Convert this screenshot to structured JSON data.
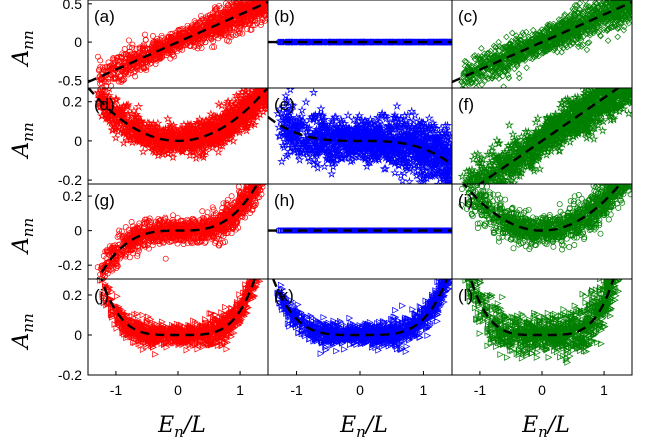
{
  "chart_data": [
    {
      "panel": "(a)",
      "type": "scatter",
      "row": 0,
      "col": 0,
      "color": "#ff0000",
      "marker": "circle",
      "ylim": [
        -0.6,
        0.55
      ],
      "xlim": [
        -1.45,
        1.45
      ],
      "yticks": [
        -0.5,
        0,
        0.5
      ],
      "ytick_labels": [
        "-0.5",
        "0",
        "0.5"
      ],
      "trend": "linear",
      "slope": 0.36,
      "spread": 0.1,
      "n": 1400
    },
    {
      "panel": "(b)",
      "type": "scatter",
      "row": 0,
      "col": 1,
      "color": "#0000ff",
      "marker": "diamond",
      "ylim": [
        -0.6,
        0.55
      ],
      "xlim": [
        -1.45,
        1.45
      ],
      "yticks": [],
      "ytick_labels": [],
      "trend": "flat",
      "spread": 0.0,
      "n": 900
    },
    {
      "panel": "(c)",
      "type": "scatter",
      "row": 0,
      "col": 2,
      "color": "#007f00",
      "marker": "diamond",
      "ylim": [
        -0.6,
        0.55
      ],
      "xlim": [
        -1.45,
        1.45
      ],
      "yticks": [],
      "ytick_labels": [],
      "trend": "linear",
      "slope": 0.36,
      "spread": 0.12,
      "n": 1400
    },
    {
      "panel": "(d)",
      "type": "scatter",
      "row": 1,
      "col": 0,
      "color": "#ff0000",
      "marker": "star",
      "ylim": [
        -0.22,
        0.27
      ],
      "xlim": [
        -1.45,
        1.45
      ],
      "yticks": [
        -0.2,
        0,
        0.2
      ],
      "ytick_labels": [
        "-0.2",
        "0",
        "0.2"
      ],
      "trend": "quadratic",
      "curv": 0.13,
      "spread": 0.045,
      "n": 1400
    },
    {
      "panel": "(e)",
      "type": "scatter",
      "row": 1,
      "col": 1,
      "color": "#0000ff",
      "marker": "star",
      "ylim": [
        -0.22,
        0.27
      ],
      "xlim": [
        -1.45,
        1.45
      ],
      "yticks": [],
      "ytick_labels": [],
      "trend": "cubic",
      "cub": -0.04,
      "spread": 0.07,
      "n": 1400
    },
    {
      "panel": "(f)",
      "type": "scatter",
      "row": 1,
      "col": 2,
      "color": "#007f00",
      "marker": "star",
      "ylim": [
        -0.22,
        0.27
      ],
      "xlim": [
        -1.45,
        1.45
      ],
      "yticks": [],
      "ytick_labels": [],
      "trend": "linear",
      "slope": 0.22,
      "spread": 0.06,
      "n": 1400
    },
    {
      "panel": "(g)",
      "type": "scatter",
      "row": 2,
      "col": 0,
      "color": "#ff0000",
      "marker": "circle",
      "ylim": [
        -0.28,
        0.27
      ],
      "xlim": [
        -1.45,
        1.45
      ],
      "yticks": [
        -0.2,
        0,
        0.2
      ],
      "ytick_labels": [
        "-0.2",
        "0",
        "0.2"
      ],
      "trend": "cubic",
      "cub": 0.13,
      "spread": 0.045,
      "n": 1400
    },
    {
      "panel": "(h)",
      "type": "scatter",
      "row": 2,
      "col": 1,
      "color": "#0000ff",
      "marker": "circle",
      "ylim": [
        -0.28,
        0.27
      ],
      "xlim": [
        -1.45,
        1.45
      ],
      "yticks": [],
      "ytick_labels": [],
      "trend": "flat",
      "spread": 0.0,
      "n": 900
    },
    {
      "panel": "(i)",
      "type": "scatter",
      "row": 2,
      "col": 2,
      "color": "#007f00",
      "marker": "circle",
      "ylim": [
        -0.28,
        0.27
      ],
      "xlim": [
        -1.45,
        1.45
      ],
      "yticks": [],
      "ytick_labels": [],
      "trend": "quadratic",
      "curv": 0.17,
      "spread": 0.055,
      "n": 1400
    },
    {
      "panel": "(j)",
      "type": "scatter",
      "row": 3,
      "col": 0,
      "color": "#ff0000",
      "marker": "triangle",
      "ylim": [
        -0.2,
        0.28
      ],
      "xlim": [
        -1.45,
        1.45
      ],
      "yticks": [
        -0.2,
        0,
        0.2
      ],
      "ytick_labels": [
        "-0.2",
        "0",
        "0.2"
      ],
      "trend": "quartic",
      "quart": 0.12,
      "spread": 0.035,
      "n": 1400
    },
    {
      "panel": "(k)",
      "type": "scatter",
      "row": 3,
      "col": 1,
      "color": "#0000ff",
      "marker": "triangle",
      "ylim": [
        -0.2,
        0.28
      ],
      "xlim": [
        -1.45,
        1.45
      ],
      "yticks": [],
      "ytick_labels": [],
      "trend": "quartic",
      "quart": 0.08,
      "spread": 0.035,
      "n": 1400
    },
    {
      "panel": "(l)",
      "type": "scatter",
      "row": 3,
      "col": 2,
      "color": "#007f00",
      "marker": "triangle",
      "ylim": [
        -0.2,
        0.28
      ],
      "xlim": [
        -1.45,
        1.45
      ],
      "yticks": [],
      "ytick_labels": [],
      "trend": "quartic",
      "quart": 0.16,
      "spread": 0.06,
      "n": 1400
    }
  ],
  "xticks": [
    -1,
    0,
    1
  ],
  "xtick_labels": [
    "-1",
    "0",
    "1"
  ],
  "ylabel_main": "A",
  "ylabel_sub": "nn",
  "xlabel_main": "E",
  "xlabel_sub": "n",
  "xlabel_rest": "/L"
}
